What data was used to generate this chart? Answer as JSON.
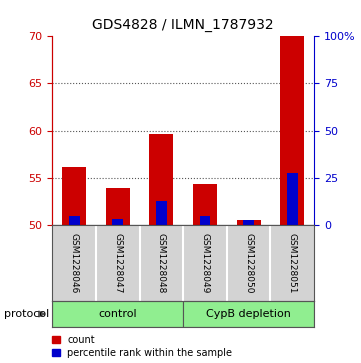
{
  "title": "GDS4828 / ILMN_1787932",
  "samples": [
    "GSM1228046",
    "GSM1228047",
    "GSM1228048",
    "GSM1228049",
    "GSM1228050",
    "GSM1228051"
  ],
  "group_labels": [
    "control",
    "CypB depletion"
  ],
  "red_values": [
    56.1,
    53.9,
    59.7,
    54.3,
    50.5,
    70.0
  ],
  "blue_values_pct": [
    5.0,
    3.0,
    12.5,
    5.0,
    2.5,
    27.5
  ],
  "ylim_left": [
    50,
    70
  ],
  "ylim_right": [
    0,
    100
  ],
  "yticks_left": [
    50,
    55,
    60,
    65,
    70
  ],
  "yticks_right": [
    0,
    25,
    50,
    75,
    100
  ],
  "yticklabels_right": [
    "0",
    "25",
    "50",
    "75",
    "100%"
  ],
  "red_color": "#CC0000",
  "blue_color": "#0000CC",
  "legend_red": "count",
  "legend_blue": "percentile rank within the sample",
  "bg_label": "#d3d3d3",
  "green_color": "#90EE90",
  "protocol_label": "protocol",
  "base_value": 50,
  "title_fontsize": 10,
  "tick_fontsize": 8,
  "sample_fontsize": 6.5,
  "group_fontsize": 8,
  "legend_fontsize": 7
}
